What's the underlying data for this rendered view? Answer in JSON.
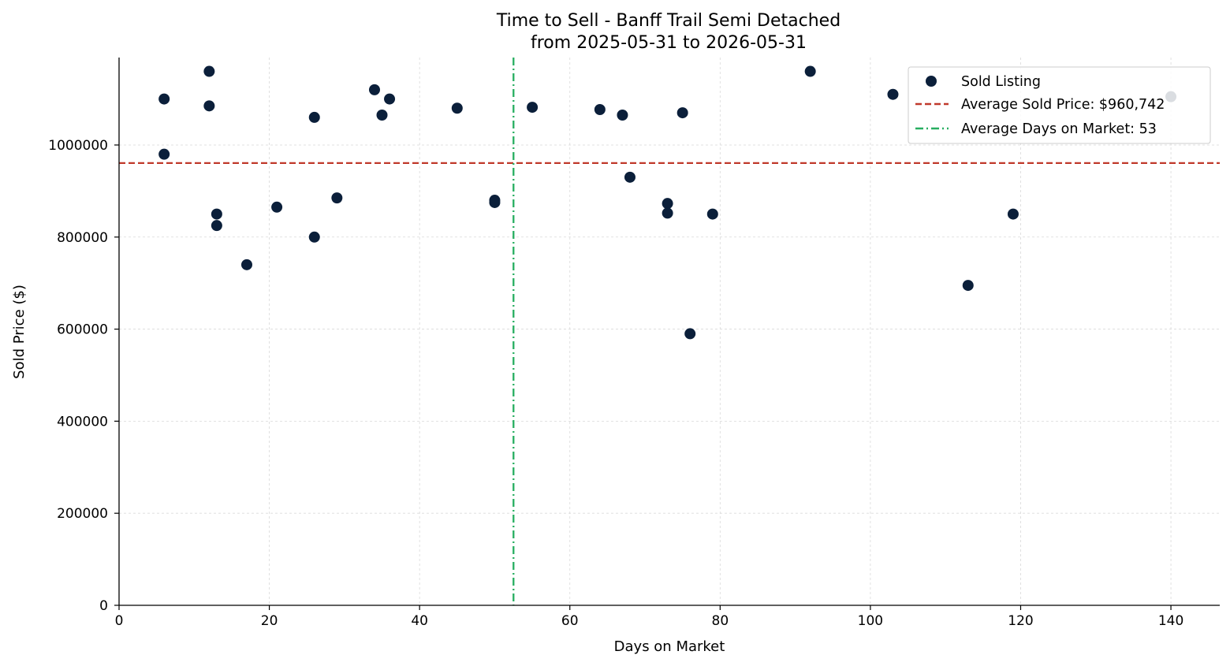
{
  "chart_data": {
    "type": "scatter",
    "title": "Time to Sell - Banff Trail Semi Detached",
    "subtitle": "from 2025-05-31 to 2026-05-31",
    "xlabel": "Days on Market",
    "ylabel": "Sold Price ($)",
    "xlim": [
      0,
      146.5
    ],
    "ylim": [
      0,
      1190000
    ],
    "x_ticks": [
      0,
      20,
      40,
      60,
      80,
      100,
      120,
      140
    ],
    "y_ticks": [
      0,
      200000,
      400000,
      600000,
      800000,
      1000000
    ],
    "grid": true,
    "legend_position": "top-right",
    "series": [
      {
        "name": "Sold Listing",
        "color": "#0b1f3a",
        "points": [
          {
            "x": 6,
            "y": 1100000
          },
          {
            "x": 6,
            "y": 980000
          },
          {
            "x": 12,
            "y": 1160000
          },
          {
            "x": 12,
            "y": 1085000
          },
          {
            "x": 13,
            "y": 850000
          },
          {
            "x": 13,
            "y": 825000
          },
          {
            "x": 17,
            "y": 740000
          },
          {
            "x": 21,
            "y": 865000
          },
          {
            "x": 26,
            "y": 1060000
          },
          {
            "x": 26,
            "y": 800000
          },
          {
            "x": 29,
            "y": 885000
          },
          {
            "x": 34,
            "y": 1120000
          },
          {
            "x": 35,
            "y": 1065000
          },
          {
            "x": 36,
            "y": 1100000
          },
          {
            "x": 45,
            "y": 1080000
          },
          {
            "x": 50,
            "y": 880000
          },
          {
            "x": 50,
            "y": 875000
          },
          {
            "x": 55,
            "y": 1082000
          },
          {
            "x": 64,
            "y": 1077000
          },
          {
            "x": 67,
            "y": 1065000
          },
          {
            "x": 68,
            "y": 930000
          },
          {
            "x": 73,
            "y": 873000
          },
          {
            "x": 73,
            "y": 852000
          },
          {
            "x": 75,
            "y": 1070000
          },
          {
            "x": 76,
            "y": 590000
          },
          {
            "x": 79,
            "y": 850000
          },
          {
            "x": 92,
            "y": 1160000
          },
          {
            "x": 103,
            "y": 1110000
          },
          {
            "x": 113,
            "y": 695000
          },
          {
            "x": 119,
            "y": 850000
          },
          {
            "x": 140,
            "y": 1105000
          }
        ]
      }
    ],
    "reference_lines": [
      {
        "name": "Average Sold Price: $960,742",
        "orientation": "horizontal",
        "value": 960742,
        "color": "#c0392b",
        "style": "dashed"
      },
      {
        "name": "Average Days on Market: 53",
        "orientation": "vertical",
        "value": 52.5,
        "color": "#27ae60",
        "style": "dashdot"
      }
    ]
  }
}
